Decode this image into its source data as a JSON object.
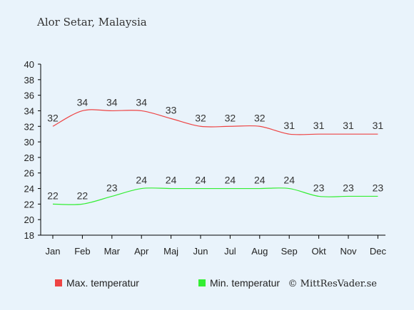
{
  "chart_data": {
    "type": "line",
    "title": "Alor Setar, Malaysia",
    "categories": [
      "Jan",
      "Feb",
      "Mar",
      "Apr",
      "Maj",
      "Jun",
      "Jul",
      "Aug",
      "Sep",
      "Okt",
      "Nov",
      "Dec"
    ],
    "series": [
      {
        "name": "Max. temperatur",
        "color": "#ee4444",
        "values": [
          32,
          34,
          34,
          34,
          33,
          32,
          32,
          32,
          31,
          31,
          31,
          31
        ]
      },
      {
        "name": "Min. temperatur",
        "color": "#33ee33",
        "values": [
          22,
          22,
          23,
          24,
          24,
          24,
          24,
          24,
          24,
          23,
          23,
          23
        ]
      }
    ],
    "ylim": [
      18,
      40
    ],
    "yticks": [
      18,
      20,
      22,
      24,
      26,
      28,
      30,
      32,
      34,
      36,
      38,
      40
    ],
    "xlabel": "",
    "ylabel": "",
    "grid": false,
    "legend_position": "bottom"
  },
  "credit": "© MittResVader.se",
  "colors": {
    "background": "#e9f3fb",
    "axis": "#000000",
    "label": "#333333"
  }
}
